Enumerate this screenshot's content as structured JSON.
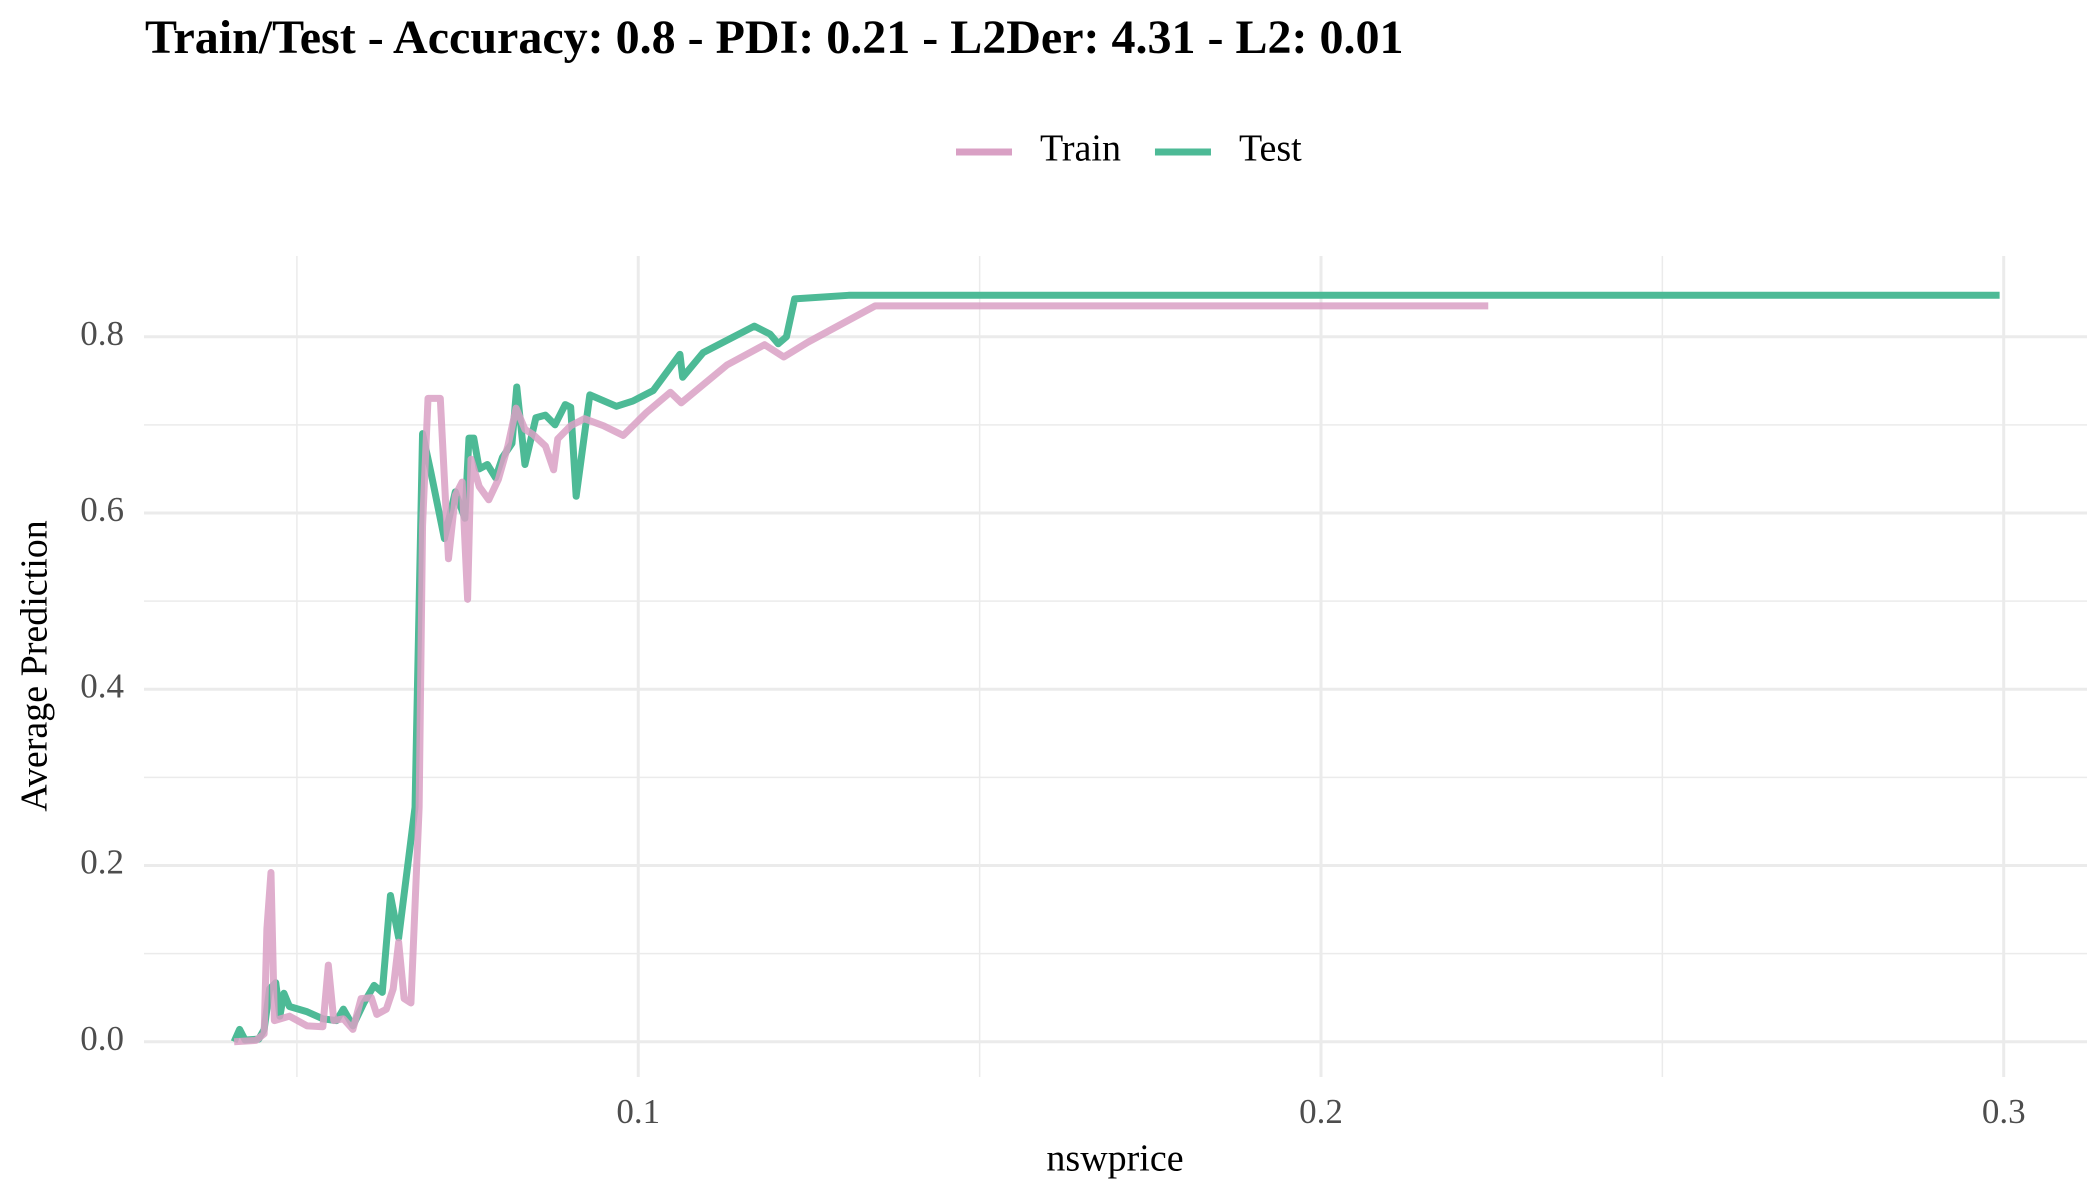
{
  "chart_data": {
    "type": "line",
    "title": "Train/Test - Accuracy: 0.8 - PDI: 0.21 - L2Der: 4.31 - L2: 0.01",
    "x_label": "nswprice",
    "y_label": "Average Prediction",
    "xlim": [
      0.0276,
      0.3122
    ],
    "ylim": [
      -0.04,
      0.8916
    ],
    "xticks": [
      0.1,
      0.2,
      0.3
    ],
    "yticks": [
      {
        "value": 0,
        "label": "0.0"
      },
      0.2,
      0.4,
      0.6,
      0.8
    ],
    "x_minor_ticks": [
      0.05,
      0.15,
      0.25
    ],
    "y_minor_ticks": [
      0.1,
      0.3,
      0.5,
      0.7
    ],
    "grid": true,
    "legend_position": "top",
    "series": [
      {
        "name": "Train",
        "color": "#d9a0c4",
        "x": [
          0.0408,
          0.044,
          0.0452,
          0.0456,
          0.0462,
          0.0467,
          0.0489,
          0.0515,
          0.0538,
          0.0546,
          0.0554,
          0.0568,
          0.0582,
          0.0594,
          0.0609,
          0.0617,
          0.0631,
          0.0641,
          0.0649,
          0.0657,
          0.0667,
          0.0679,
          0.0684,
          0.0692,
          0.071,
          0.0722,
          0.0732,
          0.0742,
          0.075,
          0.0755,
          0.0767,
          0.0781,
          0.0795,
          0.0809,
          0.0821,
          0.0834,
          0.0846,
          0.0864,
          0.0876,
          0.0882,
          0.0901,
          0.0921,
          0.0949,
          0.0978,
          0.1012,
          0.1047,
          0.1063,
          0.113,
          0.1185,
          0.1213,
          0.1249,
          0.1347,
          0.2245
        ],
        "values": [
          0,
          0.0015,
          0.009,
          0.128,
          0.192,
          0.024,
          0.029,
          0.018,
          0.017,
          0.087,
          0.024,
          0.026,
          0.014,
          0.049,
          0.05,
          0.031,
          0.037,
          0.06,
          0.113,
          0.049,
          0.044,
          0.266,
          0.585,
          0.73,
          0.73,
          0.548,
          0.62,
          0.635,
          0.502,
          0.661,
          0.63,
          0.615,
          0.638,
          0.676,
          0.719,
          0.695,
          0.689,
          0.676,
          0.649,
          0.684,
          0.699,
          0.707,
          0.699,
          0.688,
          0.714,
          0.737,
          0.725,
          0.768,
          0.791,
          0.777,
          0.794,
          0.835,
          0.835
        ]
      },
      {
        "name": "Test",
        "color": "#4dba96",
        "x": [
          0.0408,
          0.0416,
          0.0424,
          0.0444,
          0.0452,
          0.046,
          0.0469,
          0.0475,
          0.0481,
          0.0489,
          0.0515,
          0.0538,
          0.0558,
          0.0568,
          0.0582,
          0.0598,
          0.0613,
          0.0625,
          0.0637,
          0.0649,
          0.0673,
          0.0684,
          0.0696,
          0.0716,
          0.0732,
          0.0746,
          0.0752,
          0.0759,
          0.0767,
          0.0779,
          0.0791,
          0.0801,
          0.0815,
          0.0822,
          0.0834,
          0.085,
          0.0864,
          0.0878,
          0.0893,
          0.0901,
          0.0909,
          0.0929,
          0.0968,
          0.0992,
          0.1022,
          0.1061,
          0.1065,
          0.1095,
          0.117,
          0.1193,
          0.1205,
          0.1217,
          0.1229,
          0.1308,
          0.2994
        ],
        "values": [
          0,
          0.014,
          0.002,
          0.003,
          0.014,
          0.06,
          0.067,
          0.029,
          0.055,
          0.04,
          0.034,
          0.026,
          0.024,
          0.037,
          0.018,
          0.044,
          0.064,
          0.056,
          0.166,
          0.118,
          0.266,
          0.69,
          0.647,
          0.571,
          0.624,
          0.594,
          0.685,
          0.685,
          0.65,
          0.655,
          0.64,
          0.663,
          0.679,
          0.743,
          0.655,
          0.708,
          0.711,
          0.7,
          0.723,
          0.72,
          0.619,
          0.734,
          0.721,
          0.727,
          0.739,
          0.78,
          0.754,
          0.782,
          0.812,
          0.803,
          0.792,
          0.8,
          0.843,
          0.847,
          0.847
        ]
      }
    ]
  }
}
